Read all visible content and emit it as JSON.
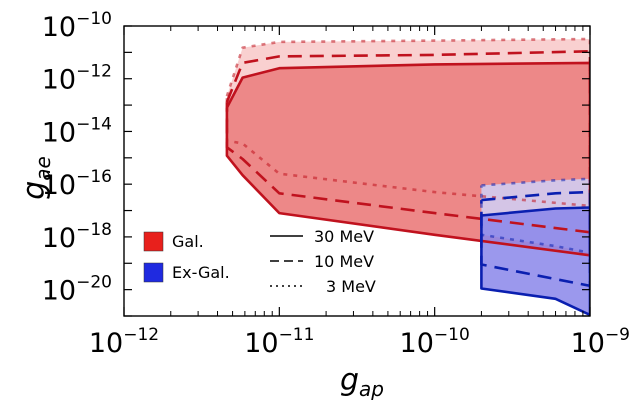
{
  "chart_data": {
    "type": "area",
    "xlabel": "g",
    "xlabel_sub": "ap",
    "ylabel": "g",
    "ylabel_sub": "ae",
    "x_scale": "log",
    "y_scale": "log",
    "xlim": [
      1e-12,
      1e-09
    ],
    "ylim": [
      1e-21,
      1e-10
    ],
    "x_ticks": [
      {
        "value": 1e-12,
        "base": "10",
        "exp": "−12"
      },
      {
        "value": 1e-11,
        "base": "10",
        "exp": "−11"
      },
      {
        "value": 1e-10,
        "base": "10",
        "exp": "−10"
      },
      {
        "value": 1e-09,
        "base": "10",
        "exp": "−9"
      }
    ],
    "y_ticks": [
      {
        "value": 1e-20,
        "base": "10",
        "exp": "−20"
      },
      {
        "value": 1e-18,
        "base": "10",
        "exp": "−18"
      },
      {
        "value": 1e-16,
        "base": "10",
        "exp": "−16"
      },
      {
        "value": 1e-14,
        "base": "10",
        "exp": "−14"
      },
      {
        "value": 1e-12,
        "base": "10",
        "exp": "−12"
      },
      {
        "value": 1e-10,
        "base": "10",
        "exp": "−10"
      }
    ],
    "colors": {
      "gal_line": "#c0121e",
      "gal_fill_outer": "#f9d0d0",
      "gal_fill_inner": "#ed8888",
      "exgal_line": "#0a1fb0",
      "exgal_fill_outer": "#cfd0f7",
      "exgal_fill_inner": "#8a86ea"
    },
    "legend": {
      "regions": [
        {
          "label": "Gal.",
          "color": "#e8201c"
        },
        {
          "label": "Ex-Gal.",
          "color": "#1f2ae0"
        }
      ],
      "styles": [
        {
          "label": "30 MeV",
          "dash": "solid"
        },
        {
          "label": "10 MeV",
          "dash": "dashed"
        },
        {
          "label": "3 MeV",
          "dash": "dotted"
        }
      ]
    },
    "series": [
      {
        "region": "Gal.",
        "mass": "30 MeV",
        "dash": "solid",
        "points": [
          [
            4.6e-12,
            8e-14
          ],
          [
            5.8e-12,
            1.1e-12
          ],
          [
            1e-11,
            2.5e-12
          ],
          [
            1e-10,
            3.5e-12
          ],
          [
            1e-09,
            4e-12
          ],
          [
            1e-09,
            2e-19
          ],
          [
            1e-10,
            1.2e-18
          ],
          [
            1e-11,
            8e-18
          ],
          [
            5.8e-12,
            2.2e-16
          ],
          [
            4.6e-12,
            1.2e-15
          ],
          [
            4.6e-12,
            8e-14
          ]
        ]
      },
      {
        "region": "Gal.",
        "mass": "10 MeV",
        "dash": "dashed",
        "points": [
          [
            4.6e-12,
            1.3e-13
          ],
          [
            5.8e-12,
            4e-12
          ],
          [
            1e-11,
            7e-12
          ],
          [
            1e-10,
            8e-12
          ],
          [
            1e-09,
            1.1e-11
          ],
          [
            1e-09,
            1.5e-18
          ],
          [
            1e-10,
            8e-18
          ],
          [
            1e-11,
            4.5e-17
          ],
          [
            5.8e-12,
            9e-16
          ],
          [
            4.6e-12,
            2.5e-15
          ],
          [
            4.6e-12,
            1.3e-13
          ]
        ]
      },
      {
        "region": "Gal.",
        "mass": "3 MeV",
        "dash": "dotted",
        "points": [
          [
            4.6e-12,
            2.2e-13
          ],
          [
            5.8e-12,
            1.5e-11
          ],
          [
            1e-11,
            2.5e-11
          ],
          [
            1e-10,
            2.8e-11
          ],
          [
            1e-09,
            3.2e-11
          ],
          [
            1e-09,
            1.5e-17
          ],
          [
            1e-10,
            5e-17
          ],
          [
            1e-11,
            2.5e-16
          ],
          [
            5.8e-12,
            3.5e-15
          ],
          [
            4.6e-12,
            4.5e-15
          ],
          [
            4.6e-12,
            2.2e-13
          ]
        ]
      },
      {
        "region": "Ex-Gal.",
        "mass": "30 MeV",
        "dash": "solid",
        "points": [
          [
            2e-10,
            6.5e-18
          ],
          [
            6e-10,
            1.2e-17
          ],
          [
            1e-09,
            1.3e-17
          ],
          [
            1e-09,
            1.1e-21
          ],
          [
            6e-10,
            4.5e-21
          ],
          [
            2e-10,
            1.1e-20
          ],
          [
            2e-10,
            6.5e-18
          ]
        ]
      },
      {
        "region": "Ex-Gal.",
        "mass": "10 MeV",
        "dash": "dashed",
        "points": [
          [
            2e-10,
            2.5e-17
          ],
          [
            6e-10,
            4.5e-17
          ],
          [
            1e-09,
            5e-17
          ],
          [
            1e-09,
            1.4e-20
          ],
          [
            6e-10,
            2.5e-20
          ],
          [
            2e-10,
            9e-20
          ],
          [
            2e-10,
            2.5e-17
          ]
        ]
      },
      {
        "region": "Ex-Gal.",
        "mass": "3 MeV",
        "dash": "dotted",
        "points": [
          [
            2e-10,
            9e-17
          ],
          [
            6e-10,
            1.4e-16
          ],
          [
            1e-09,
            1.6e-16
          ],
          [
            1e-09,
            2.5e-19
          ],
          [
            6e-10,
            4.5e-19
          ],
          [
            2e-10,
            1.2e-18
          ],
          [
            2e-10,
            9e-17
          ]
        ]
      }
    ]
  }
}
